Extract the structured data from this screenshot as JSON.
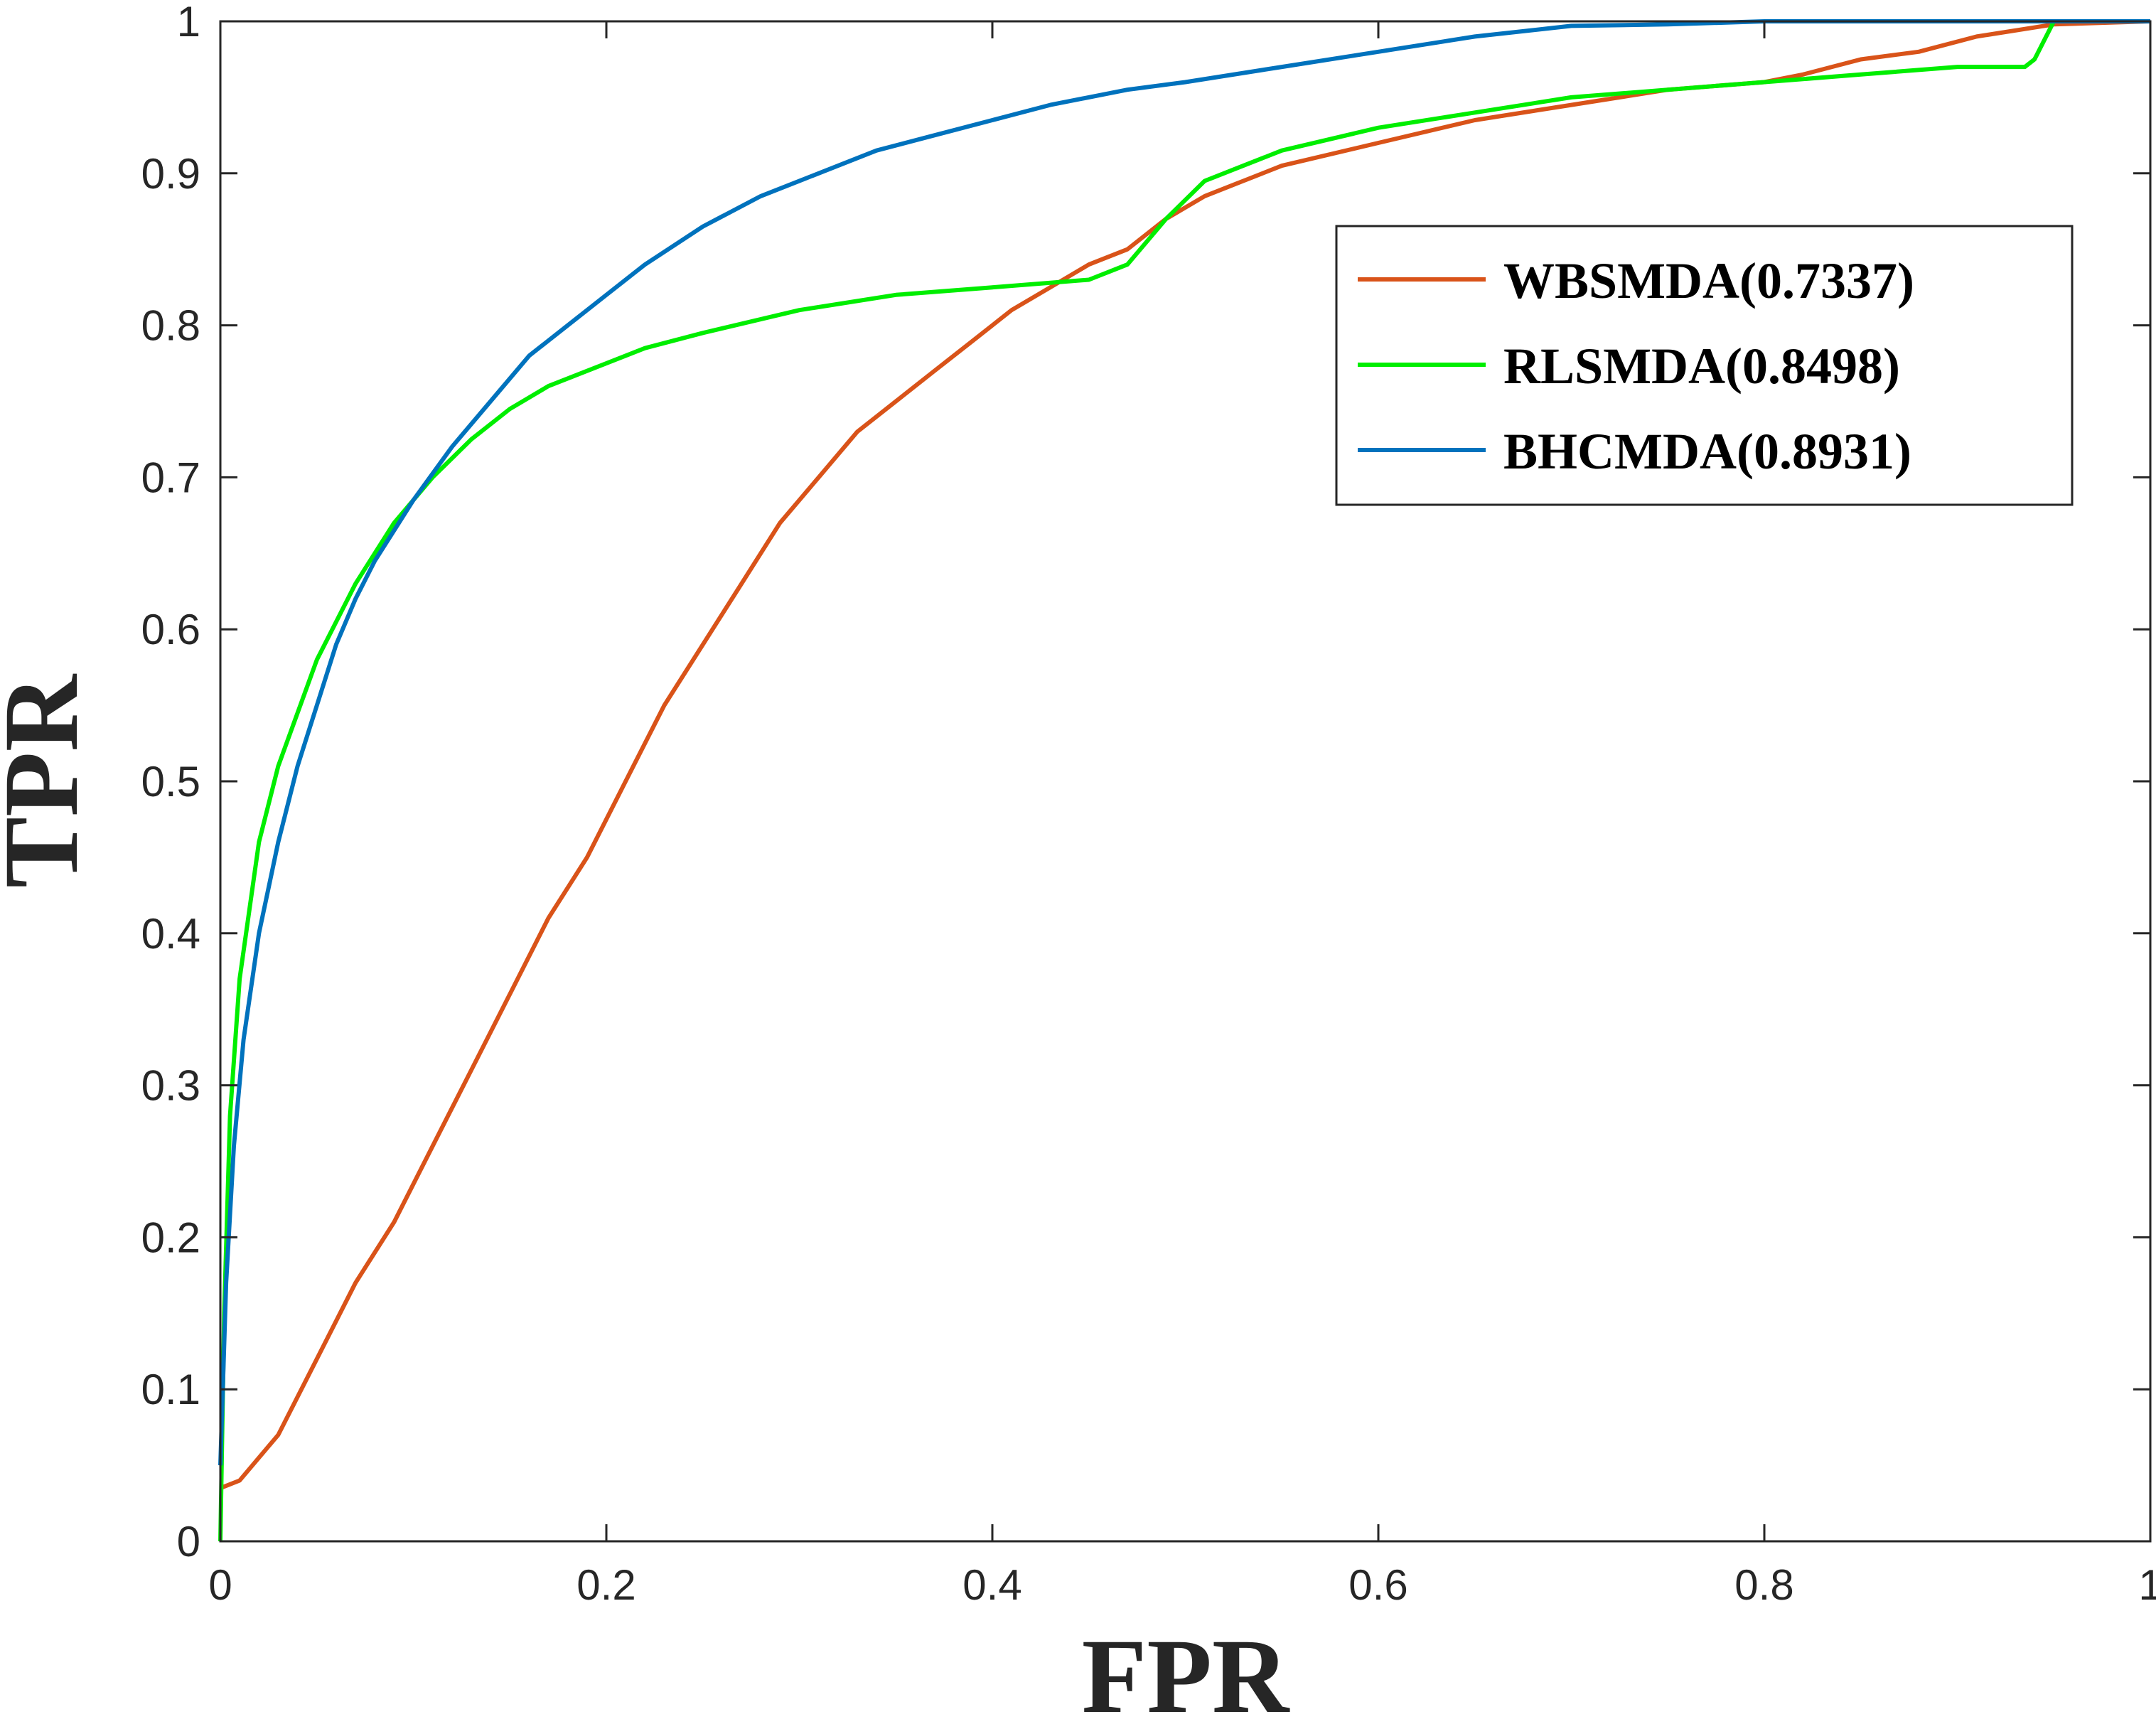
{
  "chart_data": {
    "type": "line",
    "xlabel": "FPR",
    "ylabel": "TPR",
    "xlim": [
      0,
      1
    ],
    "ylim": [
      0,
      1
    ],
    "xticks": [
      "0",
      "0.2",
      "0.4",
      "0.6",
      "0.8",
      "1"
    ],
    "yticks": [
      "0",
      "0.1",
      "0.2",
      "0.3",
      "0.4",
      "0.5",
      "0.6",
      "0.7",
      "0.8",
      "0.9",
      "1"
    ],
    "grid": false,
    "legend_position": "top-right",
    "series": [
      {
        "name": "WBSMDA(0.7337)",
        "color": "#d95319",
        "x": [
          0,
          0.01,
          0.03,
          0.05,
          0.07,
          0.09,
          0.11,
          0.13,
          0.15,
          0.17,
          0.19,
          0.21,
          0.23,
          0.25,
          0.27,
          0.29,
          0.31,
          0.33,
          0.35,
          0.37,
          0.39,
          0.41,
          0.43,
          0.45,
          0.47,
          0.49,
          0.51,
          0.53,
          0.55,
          0.6,
          0.65,
          0.7,
          0.75,
          0.8,
          0.82,
          0.85,
          0.88,
          0.91,
          0.95,
          1.0
        ],
        "y": [
          0.035,
          0.04,
          0.07,
          0.12,
          0.17,
          0.21,
          0.26,
          0.31,
          0.36,
          0.41,
          0.45,
          0.5,
          0.55,
          0.59,
          0.63,
          0.67,
          0.7,
          0.73,
          0.75,
          0.77,
          0.79,
          0.81,
          0.825,
          0.84,
          0.85,
          0.87,
          0.885,
          0.895,
          0.905,
          0.92,
          0.935,
          0.945,
          0.955,
          0.96,
          0.965,
          0.975,
          0.98,
          0.99,
          0.998,
          1.0
        ]
      },
      {
        "name": "RLSMDA(0.8498)",
        "color": "#00ee00",
        "x": [
          0,
          0.002,
          0.005,
          0.01,
          0.02,
          0.03,
          0.05,
          0.07,
          0.09,
          0.11,
          0.13,
          0.15,
          0.17,
          0.19,
          0.22,
          0.25,
          0.3,
          0.35,
          0.4,
          0.45,
          0.47,
          0.49,
          0.51,
          0.53,
          0.55,
          0.6,
          0.65,
          0.7,
          0.8,
          0.85,
          0.9,
          0.935,
          0.94,
          0.95,
          1.0
        ],
        "y": [
          0.0,
          0.15,
          0.28,
          0.37,
          0.46,
          0.51,
          0.58,
          0.63,
          0.67,
          0.7,
          0.725,
          0.745,
          0.76,
          0.77,
          0.785,
          0.795,
          0.81,
          0.82,
          0.825,
          0.83,
          0.84,
          0.87,
          0.895,
          0.905,
          0.915,
          0.93,
          0.94,
          0.95,
          0.96,
          0.965,
          0.97,
          0.97,
          0.975,
          1.0,
          1.0
        ]
      },
      {
        "name": "BHCMDA(0.8931)",
        "color": "#0072bd",
        "x": [
          0,
          0.003,
          0.007,
          0.012,
          0.02,
          0.03,
          0.04,
          0.05,
          0.06,
          0.07,
          0.08,
          0.1,
          0.12,
          0.14,
          0.16,
          0.18,
          0.2,
          0.22,
          0.25,
          0.28,
          0.31,
          0.34,
          0.37,
          0.4,
          0.43,
          0.47,
          0.5,
          0.55,
          0.6,
          0.65,
          0.7,
          0.75,
          0.8,
          0.85,
          0.9,
          1.0
        ],
        "y": [
          0.05,
          0.17,
          0.26,
          0.33,
          0.4,
          0.46,
          0.51,
          0.55,
          0.59,
          0.62,
          0.645,
          0.685,
          0.72,
          0.75,
          0.78,
          0.8,
          0.82,
          0.84,
          0.865,
          0.885,
          0.9,
          0.915,
          0.925,
          0.935,
          0.945,
          0.955,
          0.96,
          0.97,
          0.98,
          0.99,
          0.997,
          0.998,
          1.0,
          1.0,
          1.0,
          1.0
        ]
      }
    ]
  }
}
